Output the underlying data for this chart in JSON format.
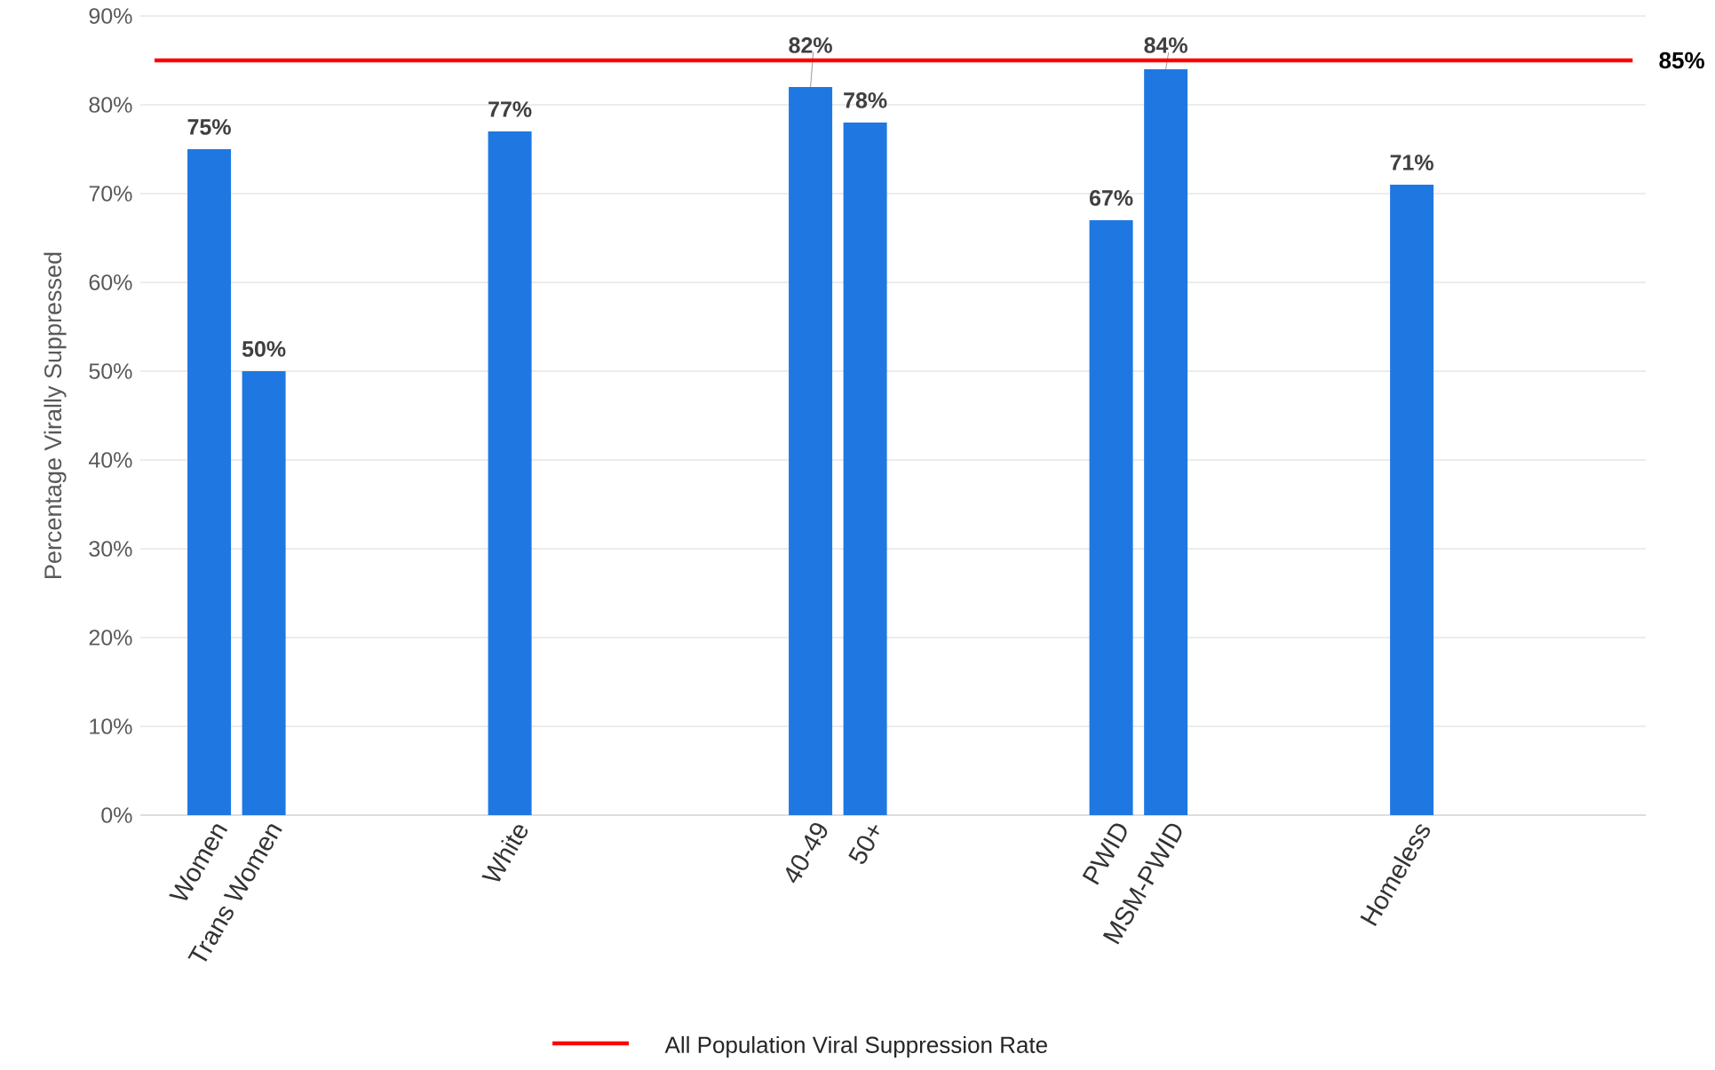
{
  "chart_data": {
    "type": "bar",
    "ylabel": "Percentage Virally Suppressed",
    "categories": [
      "Women",
      "Trans Women",
      "White",
      null,
      "40-49",
      "50+",
      "PWID",
      "MSM-PWID",
      "Homeless",
      null
    ],
    "values": [
      75,
      50,
      77,
      null,
      82,
      78,
      67,
      84,
      71,
      null
    ],
    "value_labels": [
      "75%",
      "50%",
      "77%",
      null,
      "82%",
      "78%",
      "67%",
      "84%",
      "71%",
      null
    ],
    "color": "#1f78e2",
    "ylim": [
      0,
      90
    ],
    "yticks": [
      {
        "value": 0,
        "label": "0%"
      },
      {
        "value": 10,
        "label": "10%"
      },
      {
        "value": 20,
        "label": "20%"
      },
      {
        "value": 30,
        "label": "30%"
      },
      {
        "value": 40,
        "label": "40%"
      },
      {
        "value": 50,
        "label": "50%"
      },
      {
        "value": 60,
        "label": "60%"
      },
      {
        "value": 70,
        "label": "70%"
      },
      {
        "value": 80,
        "label": "80%"
      },
      {
        "value": 90,
        "label": "90%"
      }
    ],
    "grid": "y",
    "ref_lines": [
      {
        "axis": "y",
        "value": 85,
        "label": "85%",
        "color": "#ff0000"
      }
    ],
    "annotations": [
      "All Population Viral Suppression Rate"
    ]
  }
}
